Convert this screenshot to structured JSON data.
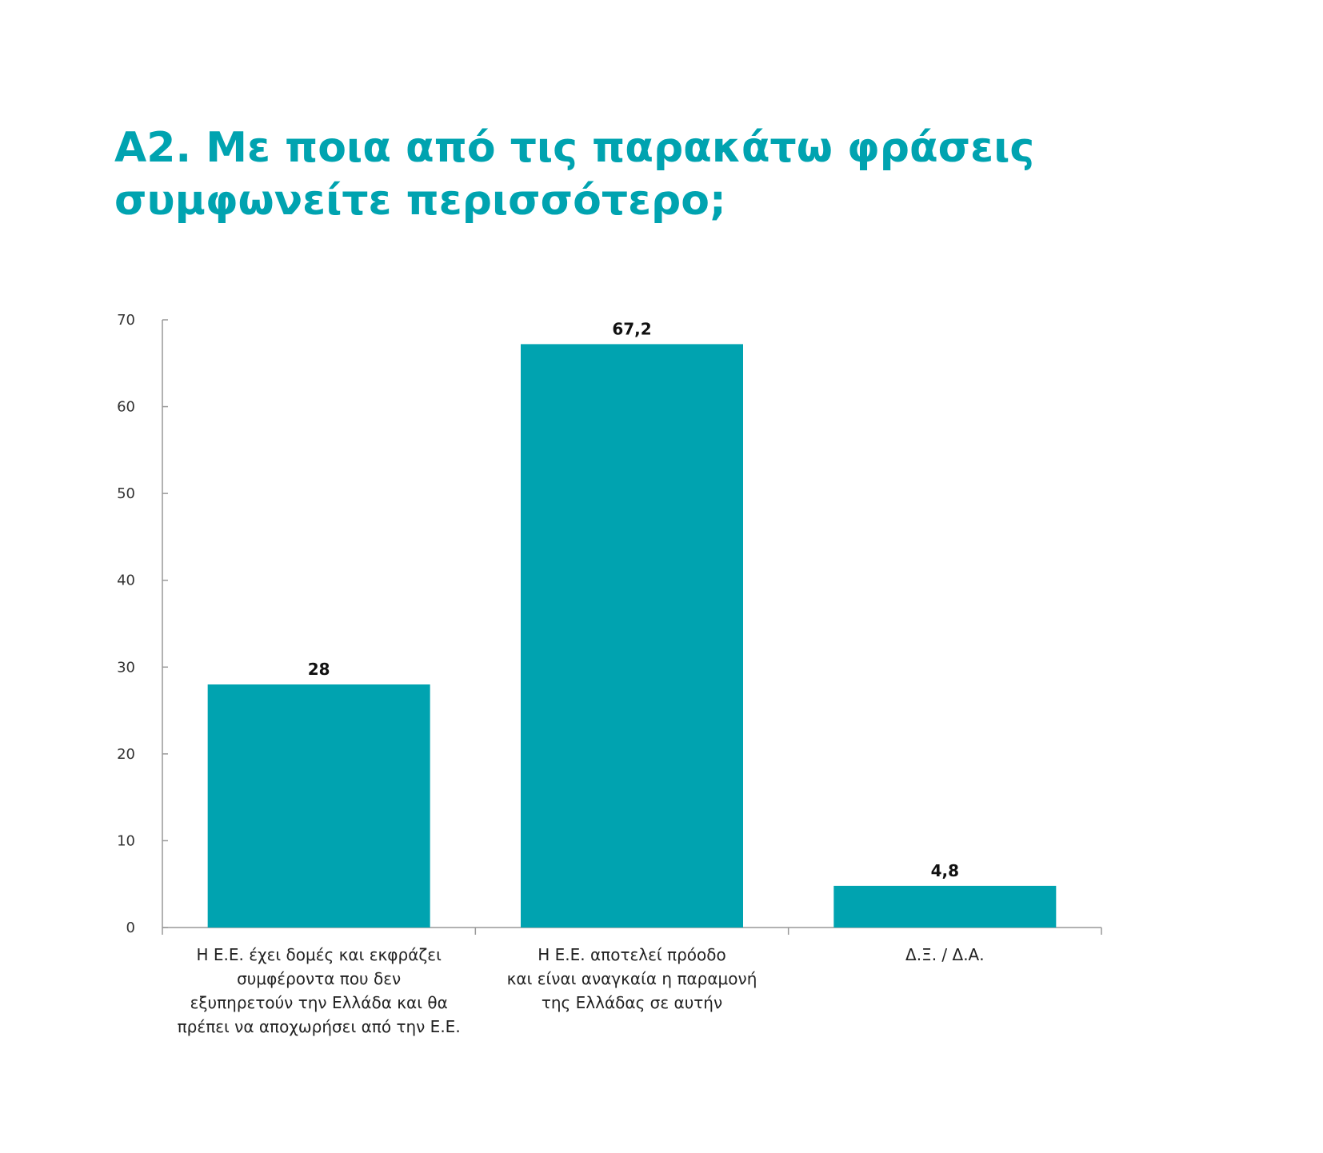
{
  "chart_data": {
    "type": "bar",
    "title": [
      "Α2. Με ποια από τις παρακάτω φράσεις",
      "συμφωνείτε περισσότερο;"
    ],
    "categories": [
      [
        "Η Ε.Ε. έχει δομές και εκφράζει",
        "συμφέροντα που δεν",
        "εξυπηρετούν την Ελλάδα και θα",
        "πρέπει να αποχωρήσει από την Ε.Ε."
      ],
      [
        "Η Ε.Ε. αποτελεί πρόοδο",
        "και είναι αναγκαία η παραμονή",
        "της Ελλάδας σε αυτήν"
      ],
      [
        "Δ.Ξ. / Δ.Α."
      ]
    ],
    "values": [
      28,
      67.2,
      4.8
    ],
    "value_labels": [
      "28",
      "67,2",
      "4,8"
    ],
    "yticks": [
      "0",
      "10",
      "20",
      "30",
      "40",
      "50",
      "60",
      "70"
    ],
    "ylim": [
      0,
      70
    ],
    "grid": false,
    "bar_color": "#00a3b0",
    "axis_color": "#999999"
  }
}
